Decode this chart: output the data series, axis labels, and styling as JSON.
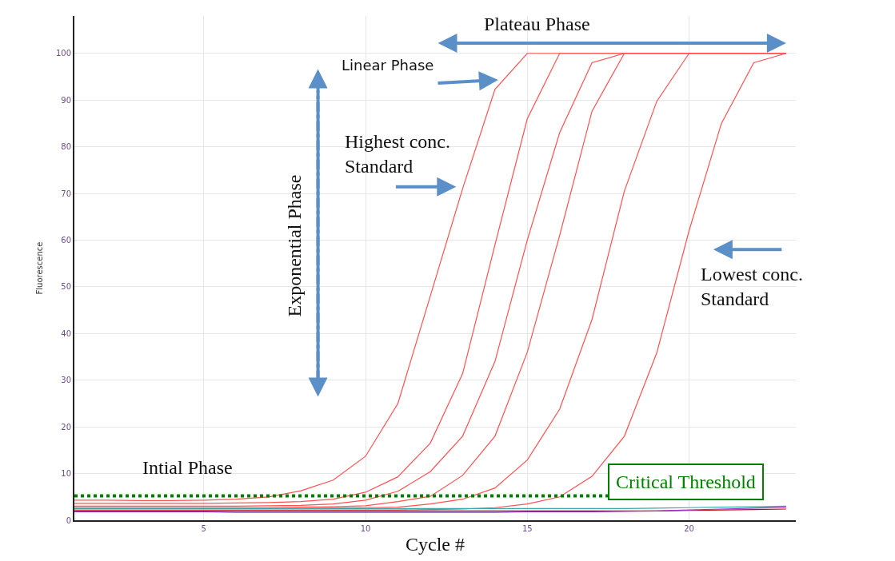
{
  "chart_data": {
    "type": "line",
    "xlabel": "Cycle #",
    "ylabel": "Fluorescence",
    "x": [
      1,
      2,
      3,
      4,
      5,
      6,
      7,
      8,
      9,
      10,
      11,
      12,
      13,
      14,
      15,
      16,
      17,
      18,
      19,
      20,
      21,
      22,
      23
    ],
    "series": [
      {
        "color": "#ff5050",
        "values": [
          4.3,
          4.3,
          4.2,
          4.2,
          4.3,
          4.5,
          5,
          6.3,
          8.6,
          13.7,
          25,
          48,
          71,
          92.3,
          100,
          100,
          100,
          100,
          100,
          100,
          100,
          100,
          100
        ]
      },
      {
        "color": "#ff5050",
        "values": [
          3.6,
          3.6,
          3.6,
          3.6,
          3.6,
          3.7,
          3.8,
          4,
          4.5,
          6,
          9.3,
          16.5,
          31.4,
          59,
          86,
          100,
          100,
          100,
          100,
          100,
          100,
          100,
          100
        ]
      },
      {
        "color": "#ff5050",
        "values": [
          3,
          3,
          3,
          3,
          3,
          3,
          3.1,
          3.2,
          3.5,
          4.3,
          6.2,
          10.4,
          18,
          34,
          60,
          83,
          98,
          100,
          100,
          100,
          100,
          100,
          100
        ]
      },
      {
        "color": "#ff5050",
        "values": [
          2.7,
          2.7,
          2.7,
          2.7,
          2.7,
          2.7,
          2.7,
          2.8,
          2.9,
          3.1,
          4,
          5.1,
          9.6,
          18,
          36,
          61,
          87.6,
          100,
          100,
          100,
          100,
          100,
          100
        ]
      },
      {
        "color": "#ff5050",
        "values": [
          2.5,
          2.5,
          2.5,
          2.5,
          2.5,
          2.5,
          2.5,
          2.5,
          2.6,
          2.7,
          2.8,
          3.5,
          4.5,
          6.9,
          12.9,
          23.8,
          43,
          70.5,
          89.7,
          100,
          100,
          100,
          100
        ]
      },
      {
        "color": "#ff5050",
        "values": [
          2.2,
          2.2,
          2.2,
          2.2,
          2.2,
          2.2,
          2.2,
          2.2,
          2.2,
          2.2,
          2.2,
          2.3,
          2.4,
          2.7,
          3.5,
          5,
          9.4,
          18,
          35.8,
          62,
          85,
          98,
          100
        ]
      },
      {
        "color": "#cc0000",
        "values": [
          2,
          2,
          2,
          2,
          2,
          2,
          2,
          2,
          2,
          2,
          2,
          2,
          2,
          2,
          2,
          2,
          2,
          2,
          2,
          2.1,
          2.2,
          2.3,
          2.4
        ]
      },
      {
        "color": "#33aaaa",
        "values": [
          2.5,
          2.5,
          2.5,
          2.5,
          2.5,
          2.5,
          2.5,
          2.5,
          2.5,
          2.5,
          2.5,
          2.5,
          2.5,
          2.5,
          2.5,
          2.5,
          2.5,
          2.5,
          2.6,
          2.7,
          2.8,
          2.9,
          3
        ]
      },
      {
        "color": "#9933cc",
        "values": [
          1.8,
          1.8,
          1.8,
          1.8,
          1.8,
          1.7,
          1.7,
          1.7,
          1.7,
          1.7,
          1.7,
          1.7,
          1.7,
          1.7,
          1.8,
          1.8,
          1.8,
          1.9,
          2,
          2.2,
          2.4,
          2.6,
          2.8
        ]
      }
    ],
    "xlim": [
      1,
      23.3
    ],
    "xticks": [
      5,
      10,
      15,
      20
    ],
    "ylim": [
      0,
      108
    ],
    "yticks": [
      0,
      10,
      20,
      30,
      40,
      50,
      60,
      70,
      80,
      90,
      100
    ],
    "grid": true,
    "marker": "none",
    "line_style": "solid",
    "ref_lines": [
      {
        "axis": "y",
        "value": 5.2,
        "label": "Critical Threshold",
        "color": "#008000",
        "line_style": "dotted"
      }
    ],
    "annotations": [
      "Plateau Phase",
      "Linear Phase",
      "Highest conc.\nStandard",
      "Lowest conc.\nStandard",
      "Exponential Phase",
      "Intial Phase"
    ]
  }
}
